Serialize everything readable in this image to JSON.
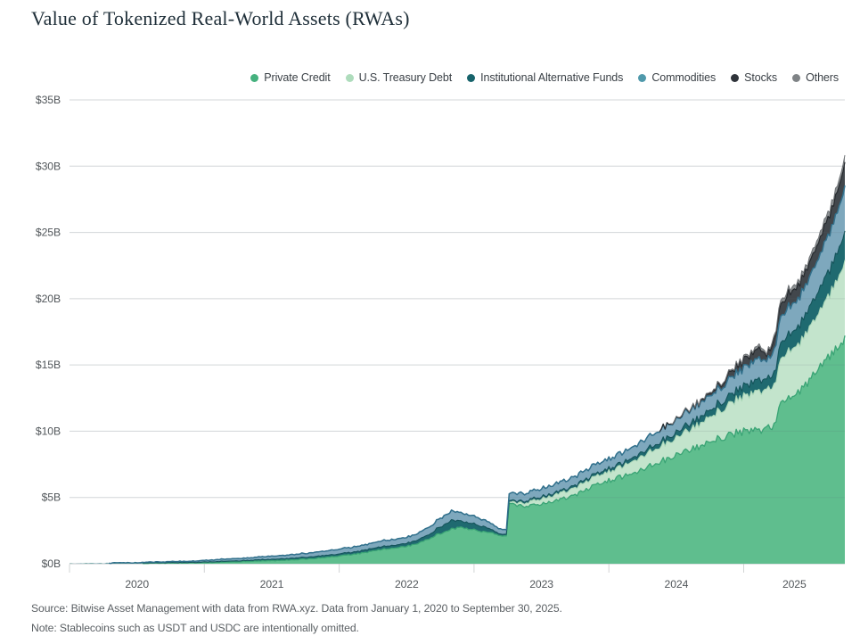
{
  "header": {
    "title": "Value of Tokenized Real-World Assets (RWAs)"
  },
  "legend": {
    "items": [
      {
        "label": "Private Credit",
        "color": "#45B17E"
      },
      {
        "label": "U.S. Treasury Debt",
        "color": "#AEDCBC"
      },
      {
        "label": "Institutional Alternative Funds",
        "color": "#17636B"
      },
      {
        "label": "Commodities",
        "color": "#4F99AB"
      },
      {
        "label": "Stocks",
        "color": "#2F343A"
      },
      {
        "label": "Others",
        "color": "#7F8386"
      }
    ]
  },
  "chart_data": {
    "type": "area",
    "stacked": true,
    "title": "Value of Tokenized Real-World Assets (RWAs)",
    "unit": "billions USD",
    "x_unit": "decimal_year",
    "xlim": [
      2020.0,
      2025.75
    ],
    "ylim": [
      0,
      35
    ],
    "grid": "horizontal",
    "legend_position": "top-right",
    "y_ticks": [
      "$0B",
      "$5B",
      "$10B",
      "$15B",
      "$20B",
      "$25B",
      "$30B",
      "$35B"
    ],
    "x_tick_labels": [
      "2020",
      "2021",
      "2022",
      "2023",
      "2024",
      "2025"
    ],
    "x": [
      2020.0,
      2020.083,
      2020.167,
      2020.25,
      2020.333,
      2020.417,
      2020.5,
      2020.583,
      2020.667,
      2020.75,
      2020.833,
      2020.917,
      2021.0,
      2021.083,
      2021.167,
      2021.25,
      2021.333,
      2021.417,
      2021.5,
      2021.583,
      2021.667,
      2021.75,
      2021.833,
      2021.917,
      2022.0,
      2022.083,
      2022.167,
      2022.25,
      2022.333,
      2022.417,
      2022.5,
      2022.583,
      2022.667,
      2022.75,
      2022.833,
      2022.917,
      2023.0,
      2023.083,
      2023.167,
      2023.24,
      2023.26,
      2023.333,
      2023.417,
      2023.5,
      2023.583,
      2023.667,
      2023.75,
      2023.833,
      2023.917,
      2024.0,
      2024.083,
      2024.167,
      2024.25,
      2024.333,
      2024.417,
      2024.5,
      2024.583,
      2024.667,
      2024.75,
      2024.833,
      2024.917,
      2025.0,
      2025.083,
      2025.13,
      2025.17,
      2025.21,
      2025.24,
      2025.26,
      2025.333,
      2025.417,
      2025.5,
      2025.583,
      2025.667,
      2025.75
    ],
    "series": [
      {
        "name": "Private Credit",
        "fill": "#5FBE8E",
        "stroke": "#3AA475",
        "values": [
          0.005,
          0.005,
          0.01,
          0.01,
          0.01,
          0.02,
          0.02,
          0.03,
          0.04,
          0.05,
          0.06,
          0.07,
          0.08,
          0.1,
          0.12,
          0.15,
          0.18,
          0.21,
          0.23,
          0.26,
          0.3,
          0.36,
          0.42,
          0.5,
          0.58,
          0.68,
          0.8,
          0.95,
          1.1,
          1.2,
          1.3,
          1.55,
          1.9,
          2.3,
          2.65,
          2.7,
          2.6,
          2.4,
          2.2,
          2.1,
          4.45,
          4.4,
          4.35,
          4.5,
          4.7,
          4.9,
          5.2,
          5.6,
          6.0,
          6.3,
          6.55,
          6.8,
          7.2,
          7.5,
          7.85,
          8.2,
          8.55,
          8.85,
          9.2,
          9.55,
          9.8,
          9.95,
          10.1,
          10.15,
          10.2,
          10.25,
          10.4,
          11.8,
          12.4,
          13.0,
          14.0,
          15.0,
          16.0,
          17.0
        ]
      },
      {
        "name": "U.S. Treasury Debt",
        "fill": "#C3E4CC",
        "stroke": "#A9D6B6",
        "values": [
          0,
          0,
          0,
          0,
          0,
          0,
          0,
          0,
          0,
          0,
          0,
          0,
          0,
          0,
          0,
          0,
          0,
          0,
          0,
          0,
          0,
          0,
          0,
          0,
          0,
          0,
          0,
          0,
          0,
          0,
          0,
          0,
          0,
          0,
          0,
          0,
          0,
          0,
          0,
          0,
          0.1,
          0.2,
          0.3,
          0.4,
          0.45,
          0.5,
          0.55,
          0.6,
          0.65,
          0.7,
          0.75,
          0.9,
          1.0,
          1.1,
          1.2,
          1.3,
          1.5,
          1.7,
          1.9,
          2.1,
          2.4,
          2.6,
          2.85,
          2.95,
          2.85,
          3.0,
          3.05,
          3.25,
          3.55,
          3.6,
          4.0,
          4.4,
          4.9,
          5.8
        ]
      },
      {
        "name": "Institutional Alternative Funds",
        "fill": "#1F6A70",
        "stroke": "#15545B",
        "values": [
          0.01,
          0.01,
          0.01,
          0.01,
          0.02,
          0.02,
          0.02,
          0.03,
          0.03,
          0.03,
          0.04,
          0.04,
          0.05,
          0.06,
          0.07,
          0.08,
          0.09,
          0.1,
          0.1,
          0.11,
          0.12,
          0.13,
          0.14,
          0.15,
          0.16,
          0.17,
          0.18,
          0.19,
          0.2,
          0.21,
          0.22,
          0.26,
          0.32,
          0.5,
          0.65,
          0.45,
          0.45,
          0.35,
          0.15,
          0.1,
          0.12,
          0.13,
          0.15,
          0.15,
          0.16,
          0.17,
          0.18,
          0.19,
          0.2,
          0.22,
          0.24,
          0.27,
          0.3,
          0.33,
          0.36,
          0.4,
          0.44,
          0.48,
          0.52,
          0.58,
          0.65,
          0.75,
          0.85,
          0.9,
          0.75,
          0.9,
          0.95,
          1.15,
          1.25,
          1.35,
          1.55,
          1.75,
          1.95,
          2.2
        ]
      },
      {
        "name": "Commodities",
        "fill": "#7EA8BD",
        "stroke": "#31708C",
        "values": [
          0.01,
          0.01,
          0.02,
          0.02,
          0.03,
          0.03,
          0.04,
          0.05,
          0.06,
          0.07,
          0.08,
          0.09,
          0.12,
          0.14,
          0.16,
          0.18,
          0.2,
          0.22,
          0.24,
          0.26,
          0.28,
          0.3,
          0.32,
          0.34,
          0.36,
          0.38,
          0.4,
          0.42,
          0.44,
          0.45,
          0.46,
          0.5,
          0.55,
          0.65,
          0.7,
          0.6,
          0.6,
          0.5,
          0.4,
          0.35,
          0.53,
          0.57,
          0.6,
          0.62,
          0.64,
          0.66,
          0.68,
          0.7,
          0.72,
          0.75,
          0.78,
          0.82,
          0.86,
          0.9,
          0.94,
          0.98,
          1.02,
          1.06,
          1.1,
          1.16,
          1.25,
          1.4,
          1.55,
          1.6,
          1.35,
          1.65,
          1.8,
          1.95,
          2.05,
          2.1,
          2.3,
          2.6,
          2.9,
          3.5
        ]
      },
      {
        "name": "Stocks",
        "fill": "#42474C",
        "stroke": "#262A2E",
        "values": [
          0,
          0,
          0,
          0,
          0,
          0,
          0,
          0,
          0,
          0,
          0,
          0,
          0,
          0,
          0,
          0,
          0,
          0,
          0,
          0,
          0,
          0,
          0,
          0,
          0,
          0,
          0,
          0,
          0,
          0,
          0,
          0,
          0,
          0,
          0,
          0,
          0,
          0,
          0,
          0,
          0,
          0,
          0,
          0,
          0,
          0,
          0,
          0,
          0,
          0,
          0,
          0,
          0,
          0.02,
          0.03,
          0.05,
          0.08,
          0.12,
          0.18,
          0.3,
          0.45,
          0.6,
          0.7,
          0.75,
          0.4,
          0.7,
          0.85,
          0.95,
          1.0,
          1.05,
          1.1,
          1.25,
          1.4,
          1.8
        ]
      },
      {
        "name": "Others",
        "fill": "#8E9294",
        "stroke": "#6E7275",
        "values": [
          0,
          0,
          0,
          0,
          0,
          0,
          0,
          0,
          0,
          0,
          0,
          0,
          0,
          0,
          0,
          0,
          0,
          0,
          0,
          0,
          0,
          0,
          0,
          0,
          0,
          0,
          0,
          0,
          0,
          0,
          0,
          0,
          0,
          0,
          0,
          0,
          0,
          0,
          0,
          0,
          0,
          0,
          0,
          0,
          0,
          0,
          0,
          0,
          0,
          0,
          0,
          0,
          0,
          0,
          0.02,
          0.03,
          0.04,
          0.05,
          0.06,
          0.08,
          0.1,
          0.15,
          0.2,
          0.22,
          0.12,
          0.22,
          0.25,
          0.28,
          0.3,
          0.3,
          0.35,
          0.4,
          0.45,
          0.5
        ]
      }
    ]
  },
  "footer": {
    "source": "Source: Bitwise Asset Management with data from RWA.xyz. Data from January 1, 2020 to September 30, 2025.",
    "note": "Note: Stablecoins such as USDT and USDC are intentionally omitted."
  }
}
